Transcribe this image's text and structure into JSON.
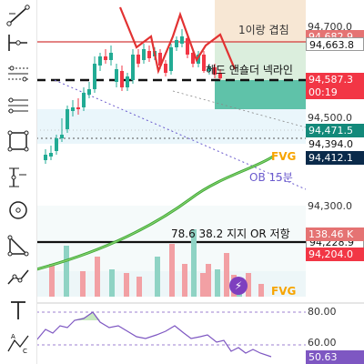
{
  "toolbar": {
    "tools": [
      {
        "name": "trend-line-tool-icon"
      },
      {
        "name": "horizontal-line-tool-icon"
      },
      {
        "name": "channel-tool-icon"
      },
      {
        "name": "fibonacci-tool-icon"
      },
      {
        "name": "rectangle-tool-icon"
      },
      {
        "name": "measure-tool-icon"
      },
      {
        "name": "circle-tool-icon"
      },
      {
        "name": "triangle-pattern-tool-icon"
      },
      {
        "name": "path-tool-icon"
      },
      {
        "name": "text-tool-icon"
      },
      {
        "name": "abc-pattern-tool-icon"
      }
    ]
  },
  "price_axis": {
    "tick_94700": "94,700.0",
    "tick_94500": "94,500.0",
    "tick_94300": "94,300.0",
    "rsi_80": "80.00",
    "rsi_60": "60.00"
  },
  "price_tags": {
    "tag1": "94,682.9",
    "tag2": "94,663.8",
    "tag3": "94,587.3",
    "tag3_countdown": "00:19",
    "tag4": "94,471.5",
    "tag5": "94,394.0",
    "tag6": "94,412.1",
    "tag7": "94,228.9",
    "tag8": "138.46 K",
    "tag9": "94,204.0",
    "rsi_value": "50.63"
  },
  "annotations": {
    "first_target": "1이랑 겹침",
    "neckline": "헤드 앤숄더 넥라인",
    "fvg_upper": "FVG",
    "ob": "OB 15분",
    "fib_label": "78.6 38.2 지지 OR 저항",
    "fvg_lower": "FVG"
  },
  "colors": {
    "bullish": "#22ab94",
    "bearish": "#f23645",
    "fvg_orange": "#f7a400",
    "ob_purple": "#6a5acd",
    "ma_green": "#4caf50",
    "rsi_purple": "#7e57c2"
  },
  "chart_data": {
    "type": "candlestick",
    "price_axis_ticks": [
      94300,
      94500,
      94700
    ],
    "rsi_axis_ticks": [
      60,
      80
    ],
    "current_price": 94587.3,
    "rsi_value": 50.63
  }
}
